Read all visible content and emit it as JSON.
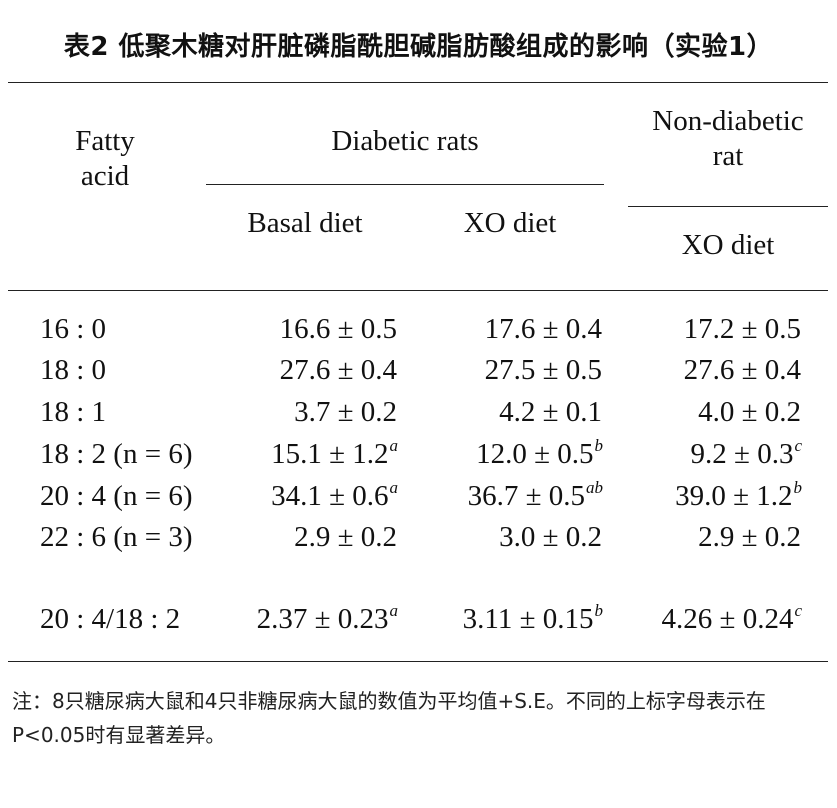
{
  "title": "表2 低聚木糖对肝脏磷脂酰胆碱脂肪酸组成的影响（实验1）",
  "header": {
    "col0": "Fatty\nacid",
    "group1": "Diabetic rats",
    "group2": "Non-diabetic\nrat",
    "sub1": "Basal diet",
    "sub2": "XO diet",
    "sub3": "XO diet"
  },
  "rows": [
    {
      "acid": "16 : 0",
      "a": "16.6 ± 0.5",
      "a_sup": "",
      "b": "17.6 ± 0.4",
      "b_sup": "",
      "c": "17.2 ± 0.5",
      "c_sup": ""
    },
    {
      "acid": "18 : 0",
      "a": "27.6 ± 0.4",
      "a_sup": "",
      "b": "27.5 ± 0.5",
      "b_sup": "",
      "c": "27.6 ± 0.4",
      "c_sup": ""
    },
    {
      "acid": "18 : 1",
      "a": "3.7 ± 0.2",
      "a_sup": "",
      "b": "4.2 ± 0.1",
      "b_sup": "",
      "c": "4.0 ± 0.2",
      "c_sup": ""
    },
    {
      "acid": "18 : 2 (n = 6)",
      "a": "15.1 ± 1.2",
      "a_sup": "a",
      "b": "12.0 ± 0.5",
      "b_sup": "b",
      "c": "9.2 ± 0.3",
      "c_sup": "c"
    },
    {
      "acid": "20 : 4 (n = 6)",
      "a": "34.1 ± 0.6",
      "a_sup": "a",
      "b": "36.7 ± 0.5",
      "b_sup": "ab",
      "c": "39.0 ± 1.2",
      "c_sup": "b"
    },
    {
      "acid": "22 : 6 (n = 3)",
      "a": "2.9 ± 0.2",
      "a_sup": "",
      "b": "3.0 ± 0.2",
      "b_sup": "",
      "c": "2.9 ± 0.2",
      "c_sup": ""
    },
    {
      "acid": "20 : 4/18 : 2",
      "a": "2.37 ± 0.23",
      "a_sup": "a",
      "b": "3.11 ± 0.15",
      "b_sup": "b",
      "c": "4.26 ± 0.24",
      "c_sup": "c"
    }
  ],
  "note": "注：8只糖尿病大鼠和4只非糖尿病大鼠的数值为平均值+S.E。不同的上标字母表示在P<0.05时有显著差异。"
}
